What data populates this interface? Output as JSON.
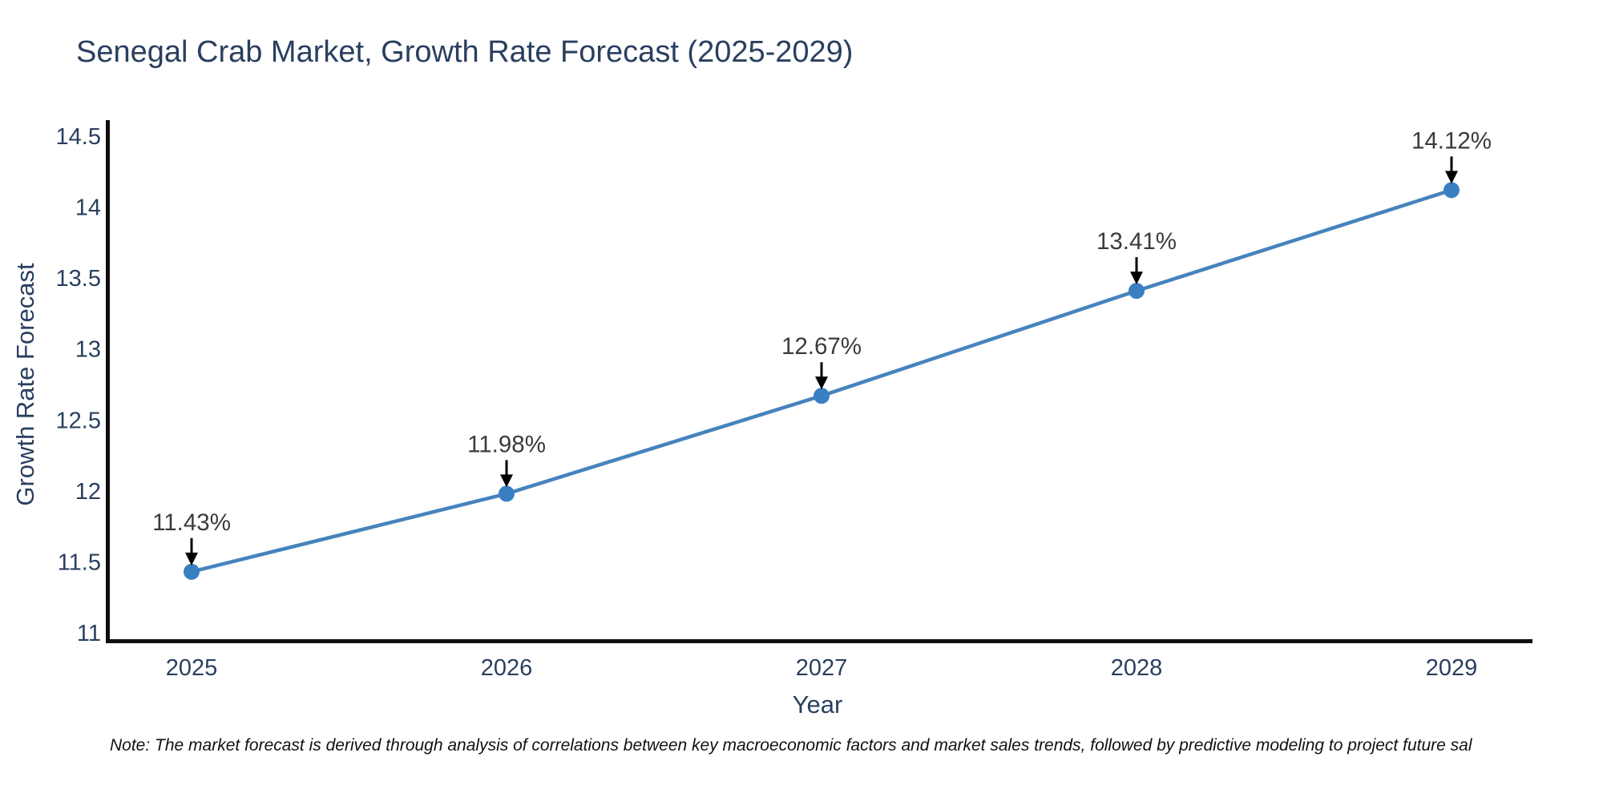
{
  "title": "Senegal Crab Market, Growth Rate Forecast (2025-2029)",
  "note": "Note: The market forecast is derived through analysis of correlations between key macroeconomic factors and market sales trends, followed by predictive modeling to project future sal",
  "chart_data": {
    "type": "line",
    "x": [
      2025,
      2026,
      2027,
      2028,
      2029
    ],
    "series": [
      {
        "name": "Growth Rate Forecast",
        "values": [
          11.43,
          11.98,
          12.67,
          13.41,
          14.12
        ]
      }
    ],
    "point_labels": [
      "11.43%",
      "11.98%",
      "12.67%",
      "13.41%",
      "14.12%"
    ],
    "title": "Senegal Crab Market, Growth Rate Forecast (2025-2029)",
    "xlabel": "Year",
    "ylabel": "Growth Rate Forecast",
    "y_ticks": [
      11,
      11.5,
      12,
      12.5,
      13,
      13.5,
      14,
      14.5
    ],
    "ylim": [
      11,
      14.5
    ],
    "grid": false,
    "legend": "none",
    "marker": "circle",
    "annotation_arrows": true
  },
  "colors": {
    "title_text": "#2a3f5f",
    "tick_text": "#2a3f5f",
    "axis_line": "#0f0f0f",
    "line": "#4583bd",
    "marker": "#3a7fc1",
    "annotation_text": "#3b3b3b",
    "arrow": "#000000",
    "note_text": "#111111",
    "background": "#ffffff"
  }
}
